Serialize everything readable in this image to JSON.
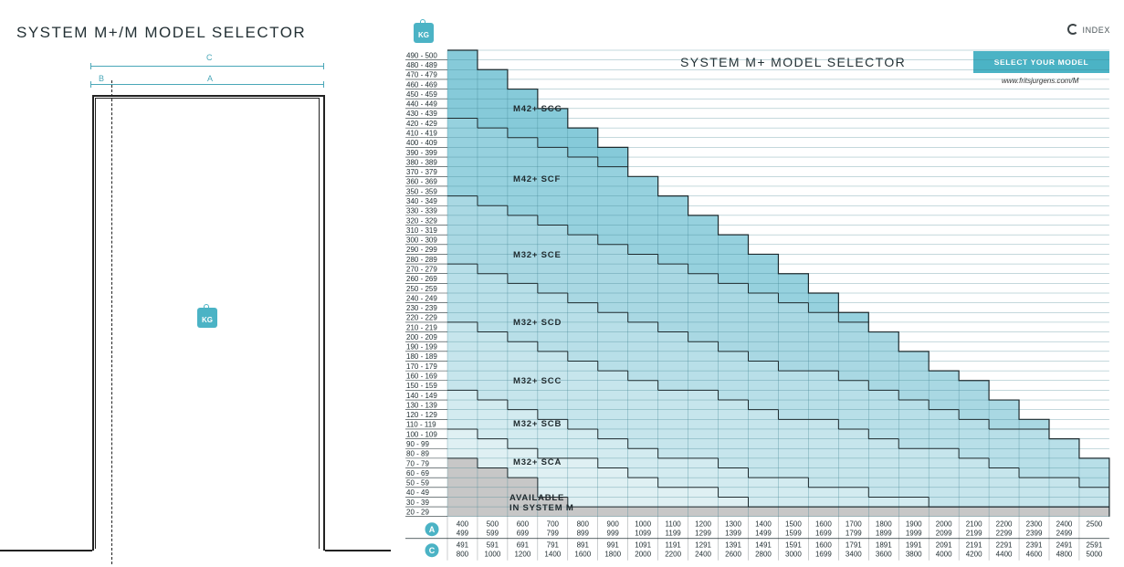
{
  "left_panel": {
    "title": "SYSTEM M+/M  MODEL SELECTOR",
    "dim_c": "C",
    "dim_b": "B",
    "dim_a": "A",
    "weight_icon": "KG"
  },
  "header": {
    "weight_icon": "KG",
    "index_label": "INDEX",
    "title": "SYSTEM M+  MODEL SELECTOR",
    "select_button": "SELECT YOUR MODEL",
    "url": "www.fritsjurgens.com/M"
  },
  "colors": {
    "accent": "#4bb3c5",
    "zone_available_m": "#c7c7c7",
    "zone_sca": "#dff0f3",
    "zone_scb": "#d3ebf0",
    "zone_scc": "#c6e5ec",
    "zone_scd": "#b8dfe8",
    "zone_sce": "#a9d8e3",
    "zone_scf": "#96d1de",
    "zone_scg": "#86cad9"
  },
  "chart_data": {
    "type": "table",
    "y_label_icon": "KG",
    "weight_rows": [
      "490 - 500",
      "480 - 489",
      "470 - 479",
      "460 - 469",
      "450 - 459",
      "440 - 449",
      "430 - 439",
      "420 - 429",
      "410 - 419",
      "400 - 409",
      "390 - 399",
      "380 - 389",
      "370 - 379",
      "360 - 369",
      "350 - 359",
      "340 - 349",
      "330 - 339",
      "320 - 329",
      "310 - 319",
      "300 - 309",
      "290 - 299",
      "280 - 289",
      "270 - 279",
      "260 - 269",
      "250 - 259",
      "240 - 249",
      "230 - 239",
      "220 - 229",
      "210 - 219",
      "200 - 209",
      "190 - 199",
      "180 - 189",
      "170 - 179",
      "160 - 169",
      "150 - 159",
      "140 - 149",
      "130 - 139",
      "120 - 129",
      "110 - 119",
      "100 - 109",
      "90 - 99",
      "80 - 89",
      "70 - 79",
      "60 - 69",
      "50 - 59",
      "40 - 49",
      "30 - 39",
      "20 - 29"
    ],
    "column_a": [
      [
        "400",
        "499"
      ],
      [
        "500",
        "599"
      ],
      [
        "600",
        "699"
      ],
      [
        "700",
        "799"
      ],
      [
        "800",
        "899"
      ],
      [
        "900",
        "999"
      ],
      [
        "1000",
        "1099"
      ],
      [
        "1100",
        "1199"
      ],
      [
        "1200",
        "1299"
      ],
      [
        "1300",
        "1399"
      ],
      [
        "1400",
        "1499"
      ],
      [
        "1500",
        "1599"
      ],
      [
        "1600",
        "1699"
      ],
      [
        "1700",
        "1799"
      ],
      [
        "1800",
        "1899"
      ],
      [
        "1900",
        "1999"
      ],
      [
        "2000",
        "2099"
      ],
      [
        "2100",
        "2199"
      ],
      [
        "2200",
        "2299"
      ],
      [
        "2300",
        "2399"
      ],
      [
        "2400",
        "2499"
      ],
      [
        "2500",
        ""
      ]
    ],
    "column_c": [
      [
        "491",
        "800"
      ],
      [
        "591",
        "1000"
      ],
      [
        "691",
        "1200"
      ],
      [
        "791",
        "1400"
      ],
      [
        "891",
        "1600"
      ],
      [
        "991",
        "1800"
      ],
      [
        "1091",
        "2000"
      ],
      [
        "1191",
        "2200"
      ],
      [
        "1291",
        "2400"
      ],
      [
        "1391",
        "2600"
      ],
      [
        "1491",
        "2800"
      ],
      [
        "1591",
        "3000"
      ],
      [
        "1600",
        "1699"
      ],
      [
        "1791",
        "3400"
      ],
      [
        "1891",
        "3600"
      ],
      [
        "1991",
        "3800"
      ],
      [
        "2091",
        "4000"
      ],
      [
        "2191",
        "4200"
      ],
      [
        "2291",
        "4400"
      ],
      [
        "2391",
        "4600"
      ],
      [
        "2491",
        "4800"
      ],
      [
        "2591",
        "5000"
      ]
    ],
    "row_label_a": "A",
    "row_label_c": "C",
    "max_weight_top_row_per_column": [
      0,
      2,
      4,
      6,
      8,
      10,
      13,
      15,
      17,
      19,
      21,
      23,
      25,
      27,
      29,
      31,
      33,
      34,
      36,
      38,
      40,
      42
    ],
    "zones": [
      {
        "label": "AVAILABLE",
        "label2": "IN SYSTEM M",
        "boundary_rows": [
          42,
          43,
          44,
          46,
          47,
          47,
          47,
          47,
          47,
          47,
          47,
          47,
          47,
          47,
          47,
          47,
          47,
          47,
          47,
          47,
          47,
          47
        ],
        "color": "zone_available_m"
      },
      {
        "label": "M32+ SCA",
        "boundary_rows": [
          39,
          40,
          41,
          42,
          42,
          43,
          44,
          45,
          45,
          46,
          47,
          47,
          47,
          47,
          47,
          47,
          47,
          47,
          47,
          47,
          47,
          47
        ],
        "color": "zone_sca"
      },
      {
        "label": "M32+ SCB",
        "boundary_rows": [
          35,
          36,
          37,
          38,
          39,
          40,
          41,
          42,
          42,
          43,
          44,
          44,
          45,
          45,
          46,
          46,
          47,
          47,
          47,
          47,
          47,
          47
        ],
        "color": "zone_scb"
      },
      {
        "label": "M32+ SCC",
        "boundary_rows": [
          28,
          29,
          30,
          31,
          32,
          33,
          34,
          35,
          35,
          36,
          37,
          38,
          38,
          39,
          40,
          41,
          41,
          42,
          43,
          44,
          44,
          45
        ],
        "color": "zone_scc"
      },
      {
        "label": "M32+ SCD",
        "boundary_rows": [
          22,
          23,
          24,
          25,
          26,
          27,
          28,
          29,
          30,
          31,
          32,
          33,
          33,
          34,
          35,
          36,
          37,
          38,
          39,
          39,
          40,
          41
        ],
        "color": "zone_scd"
      },
      {
        "label": "M32+ SCE",
        "boundary_rows": [
          15,
          16,
          17,
          18,
          19,
          20,
          21,
          22,
          23,
          24,
          25,
          26,
          27,
          28,
          29,
          30,
          31,
          31,
          32,
          33,
          34,
          35
        ],
        "color": "zone_sce"
      },
      {
        "label": "M42+ SCF",
        "boundary_rows": [
          7,
          8,
          9,
          10,
          11,
          12,
          13,
          14,
          15,
          16,
          17,
          18,
          19,
          20,
          21,
          22,
          23,
          24,
          25,
          26,
          27,
          28
        ],
        "color": "zone_scf"
      },
      {
        "label": "M42+ SCG",
        "boundary_rows": [
          0,
          0,
          0,
          0,
          0,
          0,
          0,
          0,
          0,
          0,
          0,
          0,
          0,
          0,
          0,
          0,
          0,
          0,
          0,
          0,
          0,
          0
        ],
        "color": "zone_scg"
      }
    ]
  }
}
